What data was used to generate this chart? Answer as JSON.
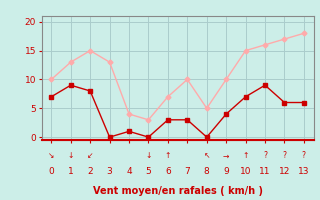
{
  "x": [
    0,
    1,
    2,
    3,
    4,
    5,
    6,
    7,
    8,
    9,
    10,
    11,
    12,
    13
  ],
  "wind_mean": [
    7,
    9,
    8,
    0,
    1,
    0,
    3,
    3,
    0,
    4,
    7,
    9,
    6,
    6
  ],
  "wind_gust": [
    10,
    13,
    15,
    13,
    4,
    3,
    7,
    10,
    5,
    10,
    15,
    16,
    17,
    18
  ],
  "wind_dirs": [
    "↘",
    "↓",
    "↙",
    "",
    "",
    "↓",
    "↑",
    "",
    "↖",
    "→",
    "↑",
    "?",
    "?",
    "?"
  ],
  "xlabel": "Vent moyen/en rafales ( km/h )",
  "xlim": [
    -0.5,
    13.5
  ],
  "ylim": [
    -0.5,
    21
  ],
  "yticks": [
    0,
    5,
    10,
    15,
    20
  ],
  "xticks": [
    0,
    1,
    2,
    3,
    4,
    5,
    6,
    7,
    8,
    9,
    10,
    11,
    12,
    13
  ],
  "color_mean": "#cc0000",
  "color_gust": "#ffaaaa",
  "bg_color": "#cceee8",
  "grid_color": "#aacccc",
  "tick_color": "#cc0000",
  "label_color": "#cc0000",
  "spine_color": "#888888"
}
